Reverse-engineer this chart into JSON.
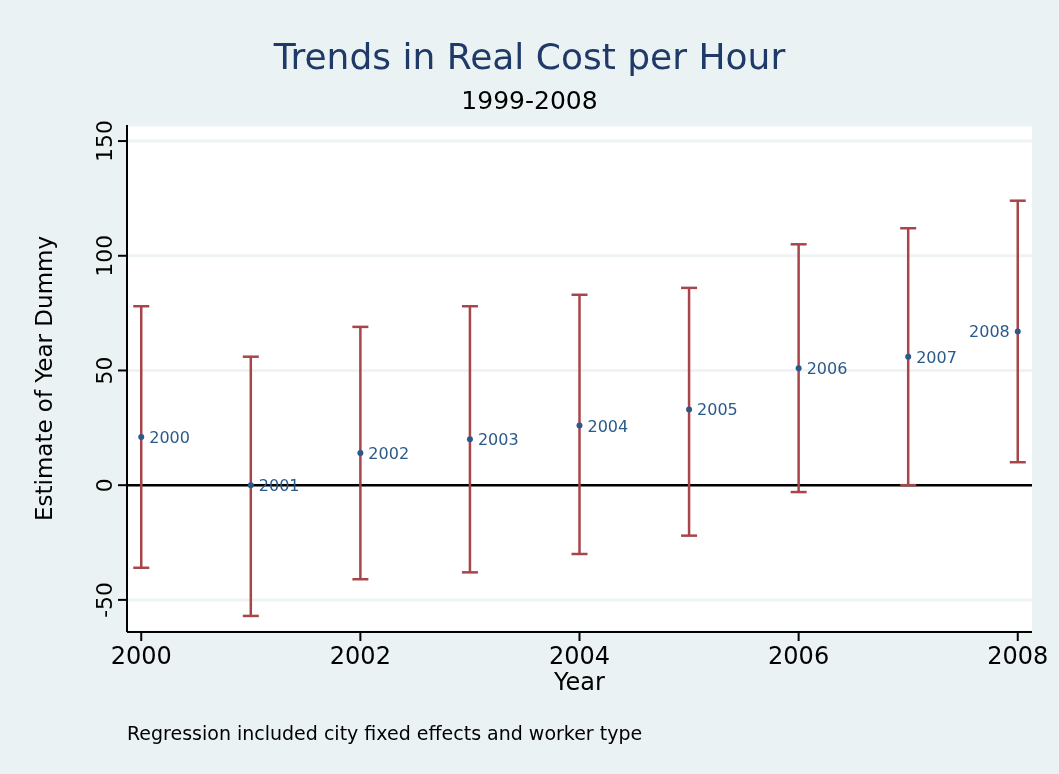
{
  "chart_data": {
    "type": "scatter",
    "title": "Trends in Real Cost per Hour",
    "subtitle": "1999-2008",
    "xlabel": "Year",
    "ylabel": "Estimate of Year Dummy",
    "x": [
      2000,
      2001,
      2002,
      2003,
      2004,
      2005,
      2006,
      2007,
      2008
    ],
    "series": [
      {
        "color": "#2a5a8a",
        "values": [
          21,
          0,
          14,
          20,
          26,
          33,
          51,
          56,
          67
        ],
        "errors": [
          [
            -36,
            78
          ],
          [
            -57,
            56
          ],
          [
            -41,
            69
          ],
          [
            -38,
            78
          ],
          [
            -30,
            83
          ],
          [
            -22,
            86
          ],
          [
            -3,
            105
          ],
          [
            0,
            112
          ],
          [
            10,
            124
          ]
        ]
      }
    ],
    "xlim": [
      1999.87,
      2008.13
    ],
    "xticks": [
      2000,
      2002,
      2004,
      2006,
      2008
    ],
    "ylim": [
      -64,
      157
    ],
    "yticks": [
      -50,
      0,
      50,
      100,
      150
    ],
    "grid": "y",
    "marker": "circle",
    "ref_lines": [
      {
        "axis": "y",
        "value": 0,
        "color": "#000000"
      }
    ],
    "annotations": [
      {
        "text": "2000",
        "x": 2000,
        "y": 21
      },
      {
        "text": "2001",
        "x": 2001,
        "y": 0
      },
      {
        "text": "2002",
        "x": 2002,
        "y": 14
      },
      {
        "text": "2003",
        "x": 2003,
        "y": 20
      },
      {
        "text": "2004",
        "x": 2004,
        "y": 26
      },
      {
        "text": "2005",
        "x": 2005,
        "y": 33
      },
      {
        "text": "2006",
        "x": 2006,
        "y": 51
      },
      {
        "text": "2007",
        "x": 2007,
        "y": 56
      },
      {
        "text": "2008",
        "x": 2008,
        "y": 67
      },
      "Regression included city fixed effects and worker type"
    ]
  }
}
